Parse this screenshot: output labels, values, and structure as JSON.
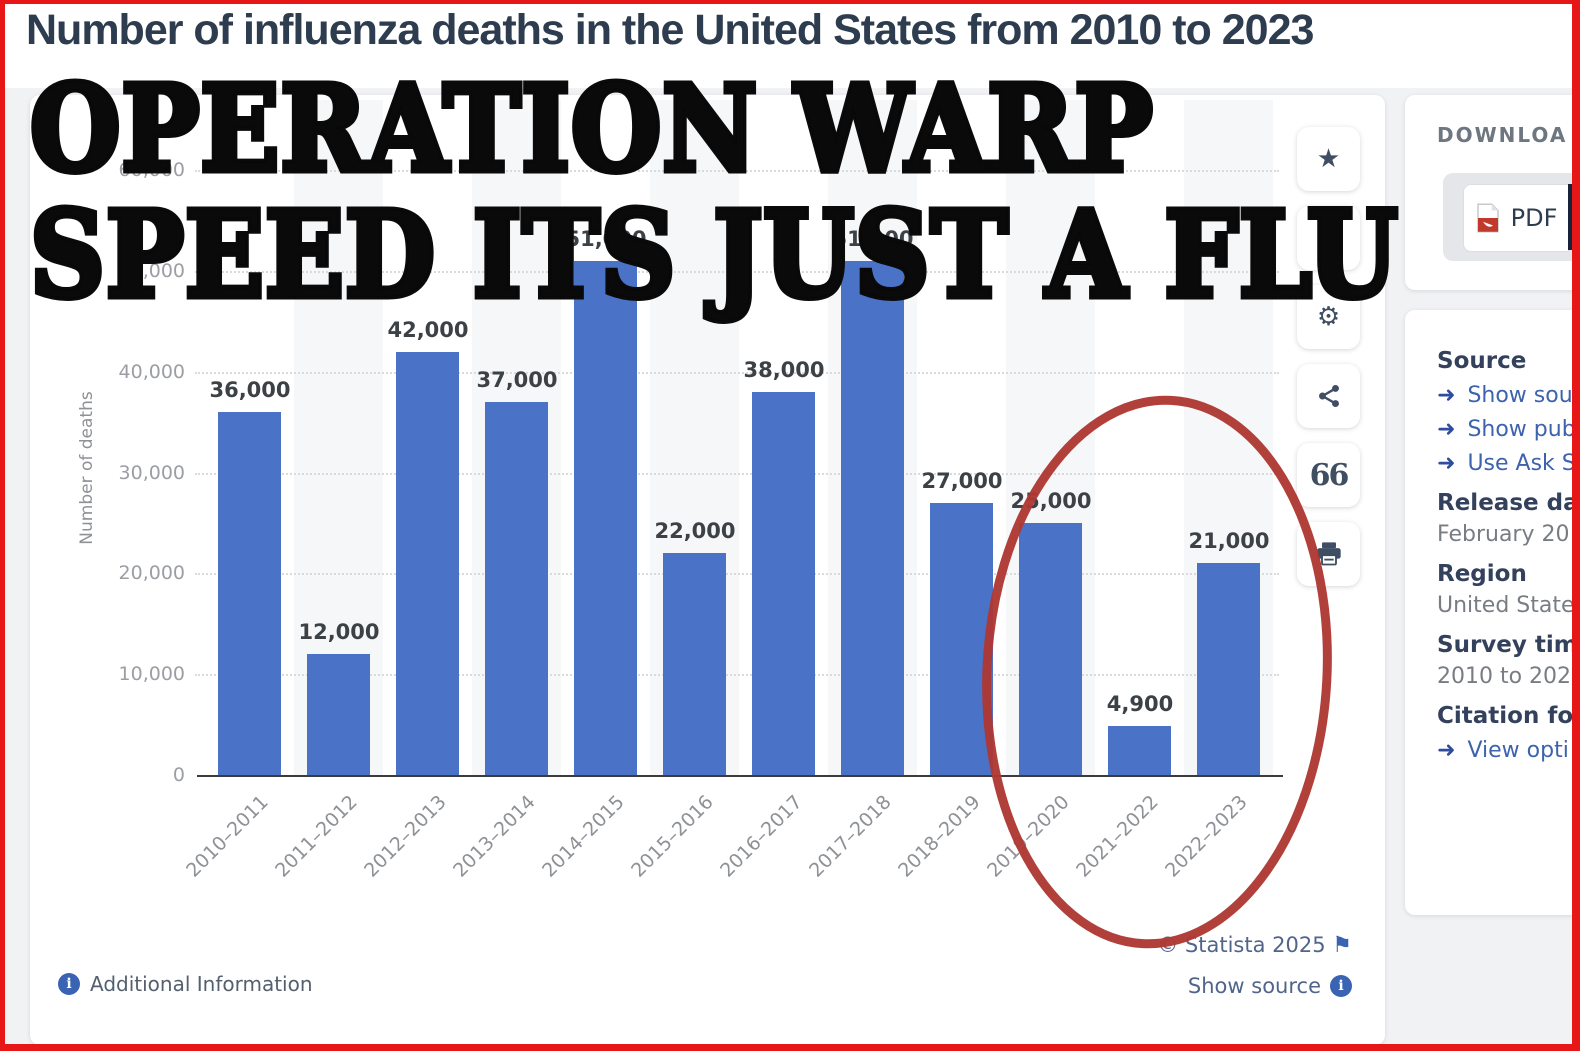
{
  "page": {
    "title": "Number of influenza deaths in the United States from 2010 to 2023"
  },
  "overlay": {
    "line1": "OPERATION WARP",
    "line2": "SPEED ITS JUST A FLU",
    "ellipse_color": "#ae3833",
    "ellipse_around": [
      "2019–2020",
      "2021–2022",
      "2022–2023"
    ]
  },
  "chart_data": {
    "type": "bar",
    "title": "Number of influenza deaths in the United States from 2010 to 2023",
    "xlabel": "",
    "ylabel": "Number of deaths",
    "ylim": [
      0,
      60000
    ],
    "ytick_step": 10000,
    "yticks": [
      "0",
      "10,000",
      "20,000",
      "30,000",
      "40,000",
      "50,000",
      "60,000"
    ],
    "grid": true,
    "legend": false,
    "bar_color": "#4a72c6",
    "categories": [
      "2010–2011",
      "2011–2012",
      "2012–2013",
      "2013–2014",
      "2014–2015",
      "2015–2016",
      "2016–2017",
      "2017–2018",
      "2018–2019",
      "2019–2020",
      "2021–2022",
      "2022–2023"
    ],
    "values": [
      36000,
      12000,
      42000,
      37000,
      51000,
      22000,
      38000,
      51000,
      27000,
      25000,
      4900,
      21000
    ],
    "labels": [
      "36,000",
      "12,000",
      "42,000",
      "37,000",
      "51,000",
      "22,000",
      "38,000",
      "51,000",
      "27,000",
      "25,000",
      "4,900",
      "21,000"
    ],
    "notes": "labels for 2014–2015 and 2017–2018 are partially hidden behind overlay text; red ellipse annotation circles the last three bars"
  },
  "toolbar": {
    "buttons": [
      "favorite",
      "hidden-under-overlay",
      "settings",
      "share",
      "cite",
      "print"
    ]
  },
  "download_panel": {
    "heading": "DOWNLOA",
    "pdf_label": "PDF",
    "plus_label": "+"
  },
  "source_panel": {
    "source_heading": "Source",
    "links": [
      "Show sou",
      "Show pub",
      "Use Ask S"
    ],
    "release_heading": "Release da",
    "release_value": "February 20",
    "region_heading": "Region",
    "region_value": "United State",
    "survey_heading": "Survey tim",
    "survey_value": "2010 to 202",
    "citation_heading": "Citation fo",
    "citation_link": "View opti"
  },
  "footer": {
    "additional_information": "Additional Information",
    "copyright": "© Statista 2025",
    "show_source": "Show source"
  },
  "icons": {
    "star": "★",
    "gear": "⚙",
    "quote": "66",
    "flag": "⚑",
    "arrow": "➜",
    "info": "i",
    "plus": "+"
  },
  "colors": {
    "bar": "#4a72c6",
    "frame_red": "#e81717",
    "annotation_red": "#ae3833",
    "title_navy": "#2d3c4e",
    "link_blue": "#3d62ae"
  }
}
